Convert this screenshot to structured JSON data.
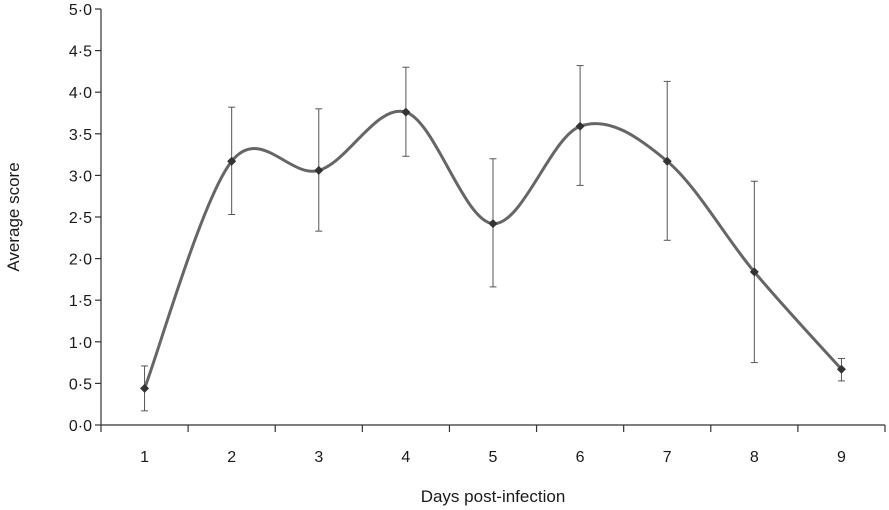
{
  "chart_data": {
    "type": "line",
    "title": "",
    "xlabel": "Days post-infection",
    "ylabel": "Average score",
    "x": [
      "1",
      "2",
      "3",
      "4",
      "5",
      "6",
      "7",
      "8",
      "9"
    ],
    "series": [
      {
        "values": [
          0.44,
          3.17,
          3.06,
          3.76,
          2.42,
          3.59,
          3.17,
          1.84,
          0.67
        ],
        "err_low": [
          0.17,
          2.53,
          2.33,
          3.23,
          1.66,
          2.88,
          2.22,
          0.75,
          0.53
        ],
        "err_high": [
          0.71,
          3.82,
          3.8,
          4.3,
          3.2,
          4.32,
          4.13,
          2.93,
          0.8
        ]
      }
    ],
    "ylim": [
      0,
      5
    ],
    "y_ticks": [
      "0·0",
      "0·5",
      "1·0",
      "1·5",
      "2·0",
      "2·5",
      "3·0",
      "3·5",
      "4·0",
      "4·5",
      "5·0"
    ],
    "grid": false,
    "line_color": "#666666",
    "marker_color": "#333333"
  }
}
